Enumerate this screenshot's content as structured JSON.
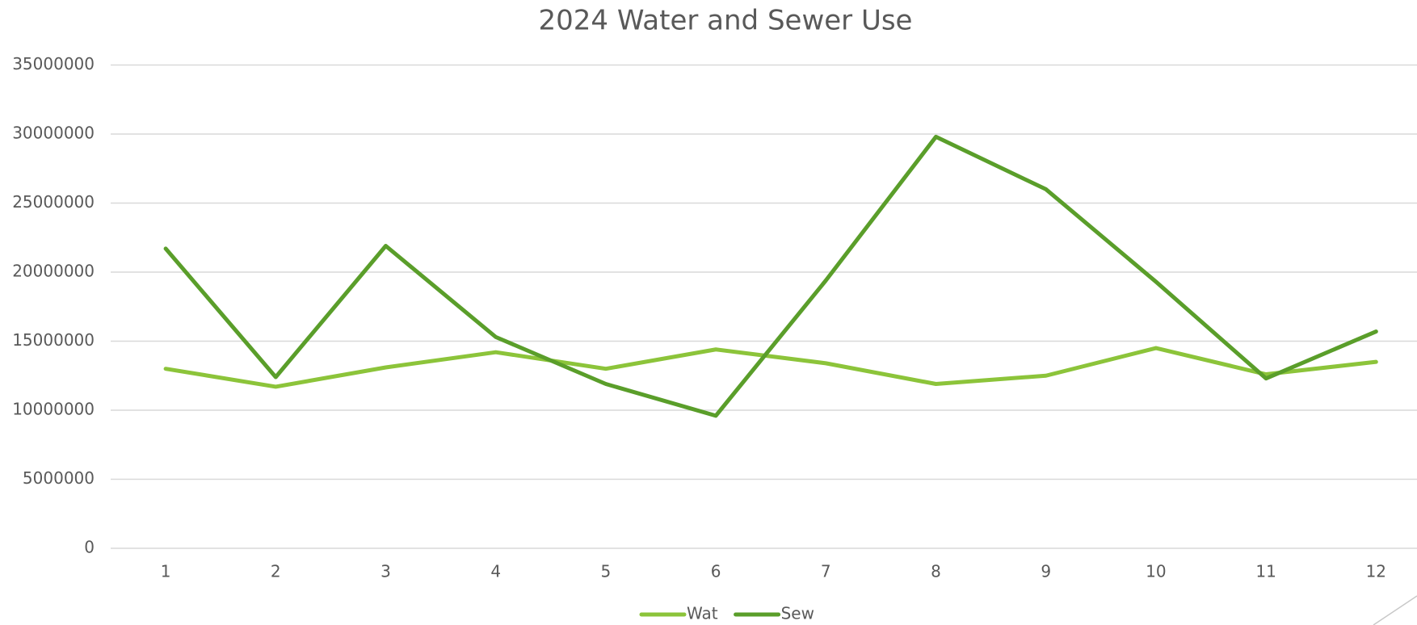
{
  "chart_data": {
    "type": "line",
    "title": "2024 Water and Sewer Use",
    "categories": [
      "1",
      "2",
      "3",
      "4",
      "5",
      "6",
      "7",
      "8",
      "9",
      "10",
      "11",
      "12"
    ],
    "series": [
      {
        "name": "Wat",
        "color": "#8cc43a",
        "values": [
          13000000,
          11700000,
          13100000,
          14200000,
          13000000,
          14400000,
          13400000,
          11900000,
          12500000,
          14500000,
          12600000,
          13500000
        ]
      },
      {
        "name": "Sew",
        "color": "#5a9e2a",
        "values": [
          21700000,
          12400000,
          21900000,
          15300000,
          11900000,
          9600000,
          19400000,
          29800000,
          26000000,
          19300000,
          12300000,
          15700000
        ]
      }
    ],
    "ylim": [
      0,
      35000000
    ],
    "yticks": [
      0,
      5000000,
      10000000,
      15000000,
      20000000,
      25000000,
      30000000,
      35000000
    ],
    "grid": true,
    "legend": "bottom"
  }
}
